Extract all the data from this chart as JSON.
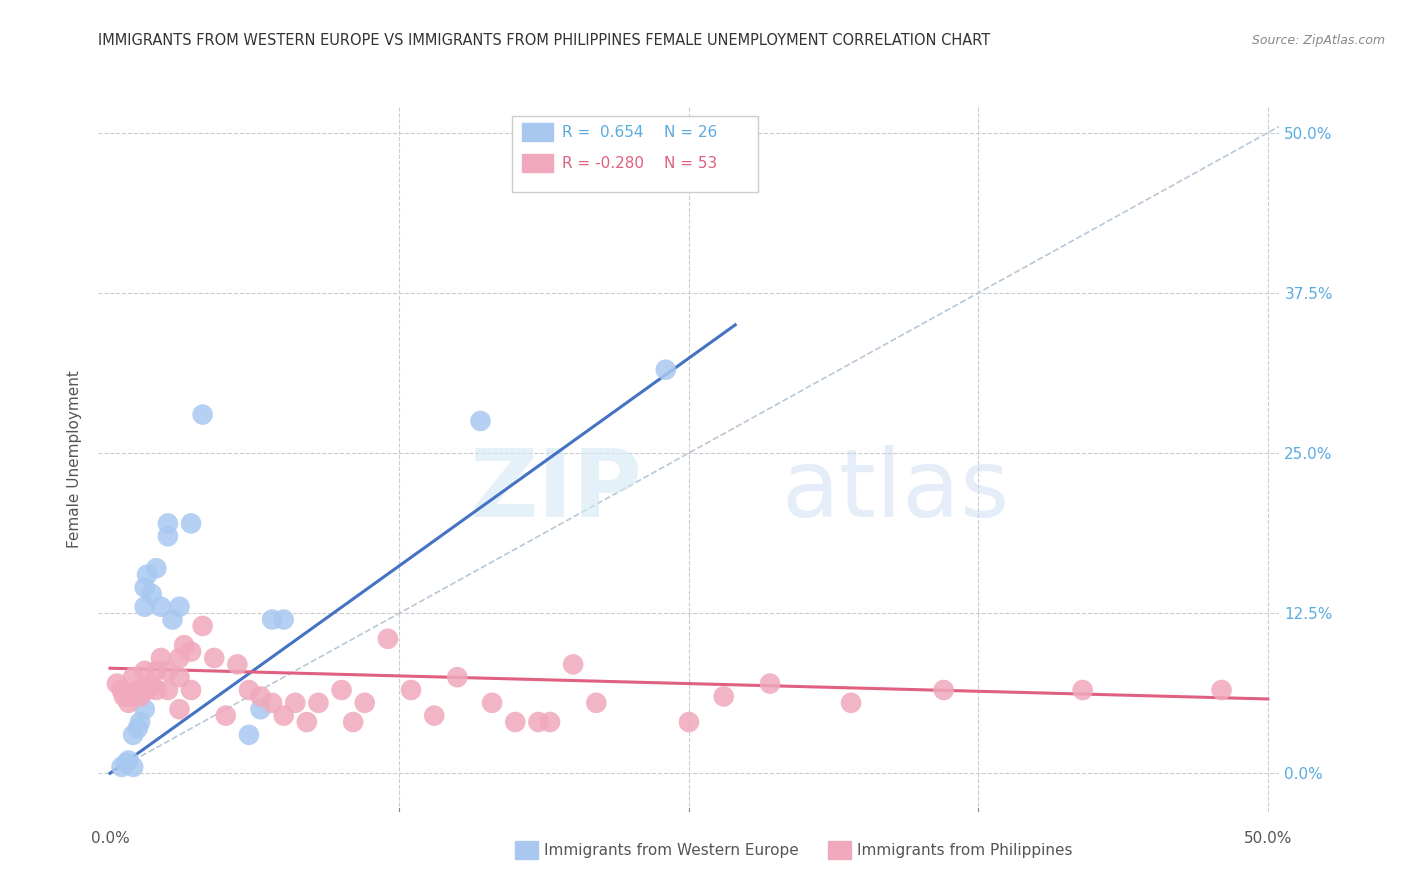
{
  "title": "IMMIGRANTS FROM WESTERN EUROPE VS IMMIGRANTS FROM PHILIPPINES FEMALE UNEMPLOYMENT CORRELATION CHART",
  "source": "Source: ZipAtlas.com",
  "ylabel": "Female Unemployment",
  "ytick_labels": [
    "0.0%",
    "12.5%",
    "25.0%",
    "37.5%",
    "50.0%"
  ],
  "ytick_values": [
    0.0,
    0.125,
    0.25,
    0.375,
    0.5
  ],
  "xtick_values": [
    0.0,
    0.125,
    0.25,
    0.375,
    0.5
  ],
  "xlim": [
    -0.005,
    0.505
  ],
  "ylim": [
    -0.03,
    0.52
  ],
  "legend_labels": [
    "Immigrants from Western Europe",
    "Immigrants from Philippines"
  ],
  "blue_color": "#a8c8f0",
  "pink_color": "#f0a8bc",
  "blue_line_color": "#4472c4",
  "pink_line_color": "#e06080",
  "diagonal_color": "#b8c8d8",
  "watermark_zip": "ZIP",
  "watermark_atlas": "atlas",
  "scatter_blue": [
    [
      0.005,
      0.005
    ],
    [
      0.007,
      0.008
    ],
    [
      0.008,
      0.01
    ],
    [
      0.01,
      0.005
    ],
    [
      0.01,
      0.03
    ],
    [
      0.012,
      0.035
    ],
    [
      0.013,
      0.04
    ],
    [
      0.015,
      0.05
    ],
    [
      0.015,
      0.13
    ],
    [
      0.015,
      0.145
    ],
    [
      0.016,
      0.155
    ],
    [
      0.018,
      0.14
    ],
    [
      0.02,
      0.16
    ],
    [
      0.022,
      0.13
    ],
    [
      0.025,
      0.185
    ],
    [
      0.025,
      0.195
    ],
    [
      0.027,
      0.12
    ],
    [
      0.03,
      0.13
    ],
    [
      0.035,
      0.195
    ],
    [
      0.04,
      0.28
    ],
    [
      0.06,
      0.03
    ],
    [
      0.065,
      0.05
    ],
    [
      0.07,
      0.12
    ],
    [
      0.075,
      0.12
    ],
    [
      0.16,
      0.275
    ],
    [
      0.24,
      0.315
    ]
  ],
  "scatter_pink": [
    [
      0.003,
      0.07
    ],
    [
      0.005,
      0.065
    ],
    [
      0.006,
      0.06
    ],
    [
      0.008,
      0.055
    ],
    [
      0.009,
      0.06
    ],
    [
      0.01,
      0.075
    ],
    [
      0.012,
      0.065
    ],
    [
      0.013,
      0.06
    ],
    [
      0.015,
      0.08
    ],
    [
      0.016,
      0.065
    ],
    [
      0.018,
      0.07
    ],
    [
      0.02,
      0.08
    ],
    [
      0.02,
      0.065
    ],
    [
      0.022,
      0.09
    ],
    [
      0.025,
      0.08
    ],
    [
      0.025,
      0.065
    ],
    [
      0.03,
      0.09
    ],
    [
      0.03,
      0.075
    ],
    [
      0.03,
      0.05
    ],
    [
      0.032,
      0.1
    ],
    [
      0.035,
      0.095
    ],
    [
      0.035,
      0.065
    ],
    [
      0.04,
      0.115
    ],
    [
      0.045,
      0.09
    ],
    [
      0.05,
      0.045
    ],
    [
      0.055,
      0.085
    ],
    [
      0.06,
      0.065
    ],
    [
      0.065,
      0.06
    ],
    [
      0.07,
      0.055
    ],
    [
      0.075,
      0.045
    ],
    [
      0.08,
      0.055
    ],
    [
      0.085,
      0.04
    ],
    [
      0.09,
      0.055
    ],
    [
      0.1,
      0.065
    ],
    [
      0.105,
      0.04
    ],
    [
      0.11,
      0.055
    ],
    [
      0.12,
      0.105
    ],
    [
      0.13,
      0.065
    ],
    [
      0.14,
      0.045
    ],
    [
      0.15,
      0.075
    ],
    [
      0.165,
      0.055
    ],
    [
      0.175,
      0.04
    ],
    [
      0.185,
      0.04
    ],
    [
      0.19,
      0.04
    ],
    [
      0.2,
      0.085
    ],
    [
      0.21,
      0.055
    ],
    [
      0.25,
      0.04
    ],
    [
      0.265,
      0.06
    ],
    [
      0.285,
      0.07
    ],
    [
      0.32,
      0.055
    ],
    [
      0.36,
      0.065
    ],
    [
      0.42,
      0.065
    ],
    [
      0.48,
      0.065
    ]
  ],
  "blue_line": {
    "x0": 0.0,
    "x1": 0.27,
    "y0": 0.0,
    "y1": 0.35
  },
  "pink_line": {
    "x0": 0.0,
    "x1": 0.5,
    "y0": 0.082,
    "y1": 0.058
  }
}
